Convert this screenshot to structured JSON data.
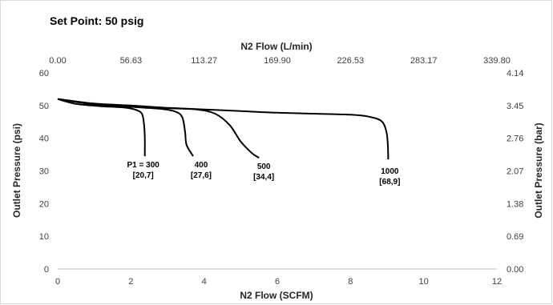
{
  "chart_data": {
    "type": "line",
    "title": "Set Point: 50 psig",
    "xlabel": "N2 Flow (SCFM)",
    "ylabel": "Outlet Pressure (psi)",
    "x2label": "N2 Flow (L/min)",
    "y2label": "Outlet Pressure (bar)",
    "xlim": [
      0,
      12
    ],
    "ylim": [
      0,
      60
    ],
    "x_ticks": [
      "0",
      "2",
      "4",
      "6",
      "8",
      "10",
      "12"
    ],
    "y_ticks": [
      "0",
      "10",
      "20",
      "30",
      "40",
      "50",
      "60"
    ],
    "x2_ticks": [
      "0.00",
      "56.63",
      "113.27",
      "169.90",
      "226.53",
      "283.17",
      "339.80"
    ],
    "y2_ticks": [
      "0.00",
      "0.69",
      "1.38",
      "2.07",
      "2.76",
      "3.45",
      "4.14"
    ],
    "grid": false,
    "series": [
      {
        "label_lines": [
          "P1 = 300",
          "[20,7]"
        ],
        "points": [
          [
            0,
            52
          ],
          [
            0.5,
            50.5
          ],
          [
            1.2,
            49.8
          ],
          [
            1.8,
            49.4
          ],
          [
            2.1,
            48.8
          ],
          [
            2.3,
            47.5
          ],
          [
            2.36,
            44
          ],
          [
            2.38,
            40
          ],
          [
            2.38,
            34.5
          ]
        ]
      },
      {
        "label_lines": [
          "400",
          "[27,6]"
        ],
        "points": [
          [
            0,
            52
          ],
          [
            1,
            50.3
          ],
          [
            2,
            49.6
          ],
          [
            2.8,
            49.0
          ],
          [
            3.2,
            48.2
          ],
          [
            3.4,
            46.5
          ],
          [
            3.48,
            42
          ],
          [
            3.52,
            38
          ],
          [
            3.7,
            34.5
          ]
        ]
      },
      {
        "label_lines": [
          "500",
          "[34,4]"
        ],
        "points": [
          [
            0,
            52
          ],
          [
            1,
            50.5
          ],
          [
            2,
            49.8
          ],
          [
            3,
            49.2
          ],
          [
            3.8,
            48.8
          ],
          [
            4.3,
            47.5
          ],
          [
            4.7,
            44
          ],
          [
            5.0,
            39
          ],
          [
            5.3,
            35.5
          ],
          [
            5.5,
            34
          ]
        ]
      },
      {
        "label_lines": [
          "1000",
          "[68,9]"
        ],
        "points": [
          [
            0,
            52
          ],
          [
            1,
            50.6
          ],
          [
            2,
            50
          ],
          [
            3,
            49.3
          ],
          [
            4,
            48.8
          ],
          [
            5,
            48.3
          ],
          [
            6,
            47.8
          ],
          [
            7,
            47.5
          ],
          [
            8,
            47.2
          ],
          [
            8.5,
            46.6
          ],
          [
            8.85,
            45.2
          ],
          [
            8.98,
            42
          ],
          [
            9.02,
            38
          ],
          [
            9.03,
            33.5
          ]
        ]
      }
    ]
  }
}
